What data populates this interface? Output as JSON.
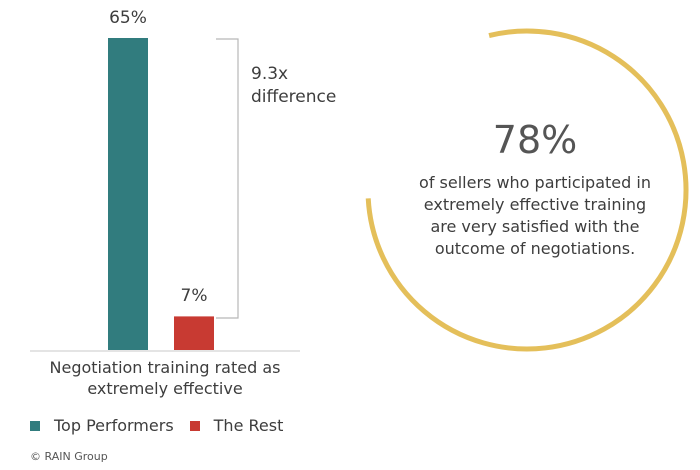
{
  "chart_data": {
    "type": "bar",
    "title": "",
    "categories": [
      "Top Performers",
      "The Rest"
    ],
    "values": [
      65,
      7
    ],
    "value_labels": [
      "65%",
      "7%"
    ],
    "colors": [
      "#317c7e",
      "#c83a32"
    ],
    "ylim": [
      0,
      70
    ],
    "grid": false,
    "legend_position": "bottom-left",
    "xlabel_lines": [
      "Negotiation training rated as",
      "extremely effective"
    ],
    "annotation_lines": [
      "9.3x",
      "difference"
    ]
  },
  "legend": {
    "items": [
      {
        "label": "Top Performers",
        "color": "#317c7e"
      },
      {
        "label": "The Rest",
        "color": "#c83a32"
      }
    ]
  },
  "stat": {
    "value": "78%",
    "percent": 78,
    "ring_color": "#e4bf5a",
    "text_lines": [
      "of sellers who participated in",
      "extremely effective training",
      "are very satisfied with the",
      "outcome of negotiations."
    ]
  },
  "footer": "© RAIN Group"
}
